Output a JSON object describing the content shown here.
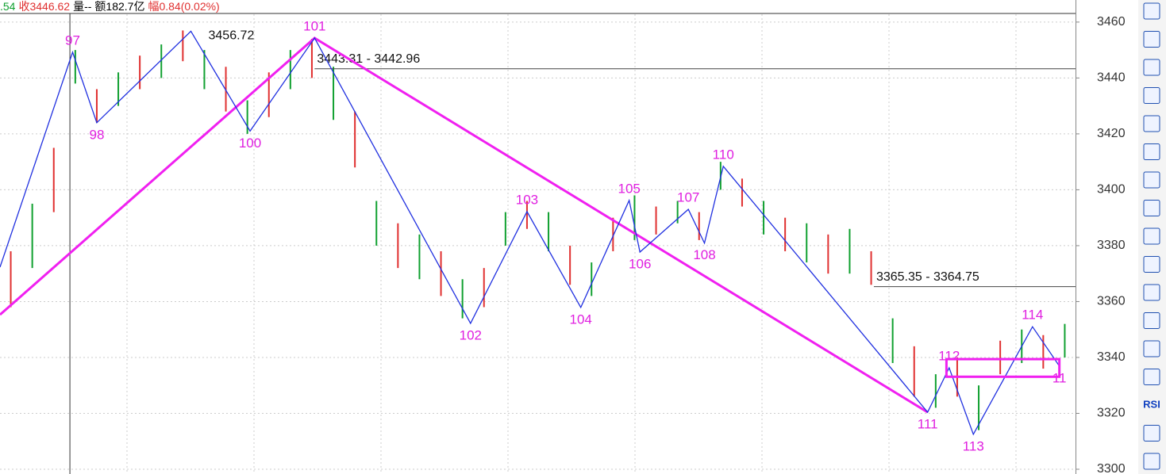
{
  "chart_data": {
    "type": "zigzag",
    "header": [
      {
        "text": ".54",
        "color": "#10a030"
      },
      {
        "text": "收3446.62",
        "color": "#e03030"
      },
      {
        "text": "量--",
        "color": "#000000"
      },
      {
        "text": "额182.7亿",
        "color": "#000000"
      },
      {
        "text": "幅0.84(0.02%)",
        "color": "#e03030"
      }
    ],
    "xlim": [
      0,
      400
    ],
    "ylim": [
      3298.3,
      3467.9
    ],
    "yticks": [
      3460,
      3440,
      3420,
      3400,
      3380,
      3360,
      3340,
      3320,
      3300
    ],
    "grid": true,
    "bars": {
      "colors": [
        "#e03030",
        "#10a030"
      ],
      "x": [
        4,
        12,
        20,
        28,
        36,
        44,
        52,
        60,
        68,
        76,
        84,
        92,
        100,
        108,
        116,
        124,
        132,
        140,
        148,
        156,
        164,
        172,
        180,
        188,
        196,
        204,
        212,
        220,
        228,
        236,
        244,
        252,
        260,
        268,
        276,
        284,
        292,
        300,
        308,
        316,
        324,
        332,
        340,
        348,
        356,
        364,
        372,
        380,
        388,
        396
      ],
      "low": [
        3358,
        3372,
        3392,
        3438,
        3424,
        3430,
        3436,
        3440,
        3446,
        3436,
        3428,
        3420,
        3426,
        3436,
        3440,
        3425,
        3408,
        3380,
        3372,
        3368,
        3362,
        3354,
        3358,
        3380,
        3386,
        3378,
        3366,
        3362,
        3378,
        3382,
        3384,
        3388,
        3382,
        3400,
        3394,
        3384,
        3378,
        3374,
        3370,
        3370,
        3366,
        3338,
        3326,
        3322,
        3326,
        3314,
        3334,
        3338,
        3336,
        3340
      ],
      "high": [
        3378,
        3395,
        3415,
        3450,
        3436,
        3442,
        3448,
        3452,
        3457,
        3450,
        3444,
        3432,
        3442,
        3450,
        3454,
        3444,
        3428,
        3396,
        3388,
        3384,
        3378,
        3368,
        3372,
        3392,
        3396,
        3392,
        3380,
        3374,
        3390,
        3398,
        3394,
        3396,
        3392,
        3410,
        3404,
        3396,
        3390,
        3388,
        3384,
        3386,
        3378,
        3354,
        3344,
        3334,
        3340,
        3330,
        3346,
        3350,
        3348,
        3352
      ]
    },
    "zigzag": {
      "color": "#2030e0",
      "x": [
        0,
        27,
        36,
        71,
        93,
        117,
        175,
        196,
        216,
        234,
        238,
        256,
        262,
        269,
        345,
        353,
        362,
        384,
        394
      ],
      "values": [
        3372.3,
        3449.2,
        3424,
        3456.72,
        3421,
        3454.3,
        3352.2,
        3392.2,
        3357.9,
        3396.2,
        3377.7,
        3393,
        3380.9,
        3408.4,
        3320.4,
        3336.3,
        3312.5,
        3351,
        3336.9
      ],
      "labels": [
        null,
        "97",
        "98",
        null,
        "100",
        "101",
        "102",
        "103",
        "104",
        "105",
        "106",
        "107",
        "108",
        "110",
        "111",
        "112",
        "113",
        "114",
        "11"
      ],
      "value_label_at": [
        3
      ],
      "label_color": "#e020e0"
    },
    "trend": {
      "color": "#f020f0",
      "x": [
        0,
        117,
        345
      ],
      "values": [
        3355.3,
        3454.3,
        3320.4
      ]
    },
    "levels": [
      {
        "label": "3443.31 - 3442.96",
        "values": [
          3443.31,
          3442.96
        ],
        "x": 117
      },
      {
        "label": "3365.35 - 3364.75",
        "values": [
          3365.35,
          3364.75
        ],
        "x": 325
      }
    ],
    "box": {
      "color": "#f020f0",
      "x": [
        352,
        394
      ],
      "values": [
        3339.4,
        3333.1
      ]
    },
    "cursor_x": 26,
    "toolbar": [
      "RSI"
    ]
  }
}
